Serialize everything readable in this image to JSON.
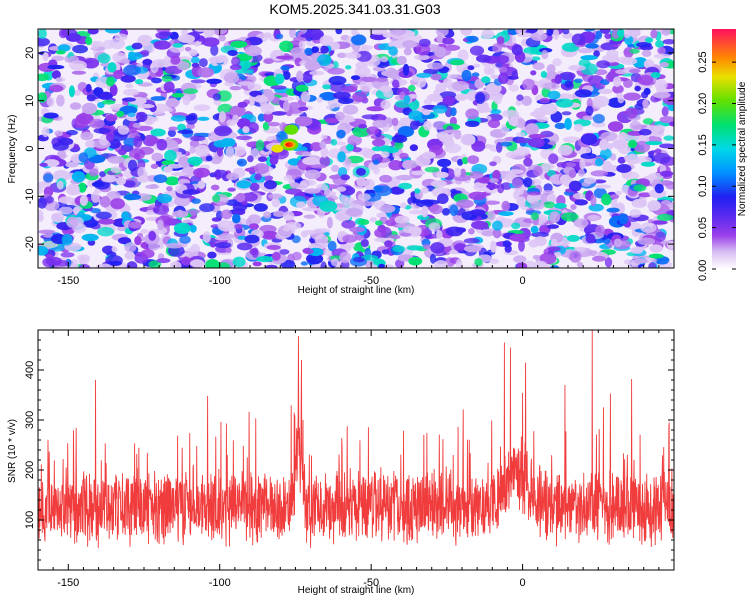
{
  "title": "KOM5.2025.341.03.31.G03",
  "colors": {
    "snr_line": "#f03c3c",
    "spectrogram_bg": "#f4eefc"
  },
  "chart_data": [
    {
      "type": "heatmap",
      "xlabel": "Height of straight line (km)",
      "ylabel": "Frequency (Hz)",
      "xlim": [
        -160,
        50
      ],
      "ylim": [
        -25,
        25
      ],
      "x_ticks": [
        "-150",
        "-100",
        "-50",
        "0"
      ],
      "x_tick_values": [
        -150,
        -100,
        -50,
        0
      ],
      "y_ticks": [
        "-20",
        "-10",
        "0",
        "10",
        "20"
      ],
      "y_tick_values": [
        -20,
        -10,
        0,
        10,
        20
      ],
      "colorbar": {
        "label": "Normalized spectral amplitude",
        "range": [
          0,
          0.29
        ],
        "ticks": [
          "0.00",
          "0.05",
          "0.10",
          "0.15",
          "0.20",
          "0.25"
        ],
        "tick_values": [
          0,
          0.05,
          0.1,
          0.15,
          0.2,
          0.25
        ]
      },
      "peak": {
        "x": -77,
        "y": 0.8,
        "value": 0.28
      }
    },
    {
      "type": "line",
      "xlabel": "Height of straight line (km)",
      "ylabel": "SNR (10 * v/v)",
      "xlim": [
        -160,
        50
      ],
      "ylim": [
        0,
        480
      ],
      "x_ticks": [
        "-150",
        "-100",
        "-50",
        "0"
      ],
      "x_tick_values": [
        -150,
        -100,
        -50,
        0
      ],
      "y_ticks": [
        "100",
        "200",
        "300",
        "400"
      ],
      "y_tick_values": [
        100,
        200,
        300,
        400
      ],
      "series": [
        {
          "sampling_step_km": 0.1,
          "x_start_km": -160,
          "x_end_km": 50,
          "baseline": 125,
          "peaks": [
            {
              "x": -141,
              "y": 380
            },
            {
              "x": -104,
              "y": 348
            },
            {
              "x": -74,
              "y": 468
            },
            {
              "x": -73,
              "y": 420
            },
            {
              "x": -6,
              "y": 455
            },
            {
              "x": -4,
              "y": 445
            },
            {
              "x": 1,
              "y": 415
            },
            {
              "x": 14,
              "y": 370
            },
            {
              "x": 23,
              "y": 480
            },
            {
              "x": 29,
              "y": 353
            },
            {
              "x": 36,
              "y": 382
            }
          ]
        }
      ]
    }
  ]
}
